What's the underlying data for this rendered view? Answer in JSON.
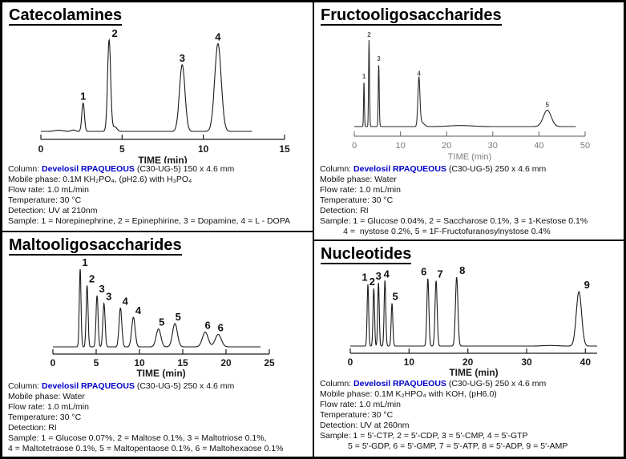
{
  "colors": {
    "background": "#ffffff",
    "border": "#000000",
    "brand_blue": "#0000cc",
    "trace_black": "#1a1a1a",
    "fructo_axis_gray": "#7a7a7a"
  },
  "panels": {
    "catecolamines": {
      "title": "Catecolamines",
      "column_prefix": "Column: ",
      "column_brand": "Develosil RPAQUEOUS",
      "column_suffix": " (C30-UG-5) 150 x 4.6 mm",
      "mobile_phase": "Mobile phase: 0.1M KH₂PO₄, (pH2.6) with H₃PO₄",
      "flow_rate": "Flow rate: 1.0 mL/min",
      "temperature": "Temperature: 30 °C",
      "detection": "Detection: UV at 210nm",
      "sample_line1": "Sample: 1 = Norepinephrine, 2 = Epinephirine, 3 = Dopamine, 4 = L - DOPA"
    },
    "fructooligosaccharides": {
      "title": "Fructooligosaccharides",
      "column_prefix": "Column: ",
      "column_brand": "Develosil RPAQUEOUS",
      "column_suffix": " (C30-UG-5) 250 x 4.6 mm",
      "mobile_phase": "Mobile phase: Water",
      "flow_rate": "Flow rate: 1.0 mL/min",
      "temperature": "Temperature: 30 °C",
      "detection": "Detection: RI",
      "sample_line1": "Sample: 1 = Glucose 0.04%, 2 = Saccharose 0.1%, 3 = 1-Kestose 0.1%",
      "sample_line2": "          4 =  nystose 0.2%, 5 = 1F-Fructofuranosylnystose 0.4%"
    },
    "maltooligosaccharides": {
      "title": "Maltooligosaccharides",
      "column_prefix": "Column: ",
      "column_brand": "Develosil RPAQUEOUS",
      "column_suffix": " (C30-UG-5) 250 x 4.6 mm",
      "mobile_phase": "Mobile phase: Water",
      "flow_rate": "Flow rate: 1.0 mL/min",
      "temperature": "Temperature: 30 °C",
      "detection": "Detection: RI",
      "sample_line1": "Sample: 1 = Glucose 0.07%, 2 = Maltose 0.1%, 3 = Maltotriose 0.1%,",
      "sample_line2": "4 = Maltotetraose 0.1%, 5 = Maltopentaose 0.1%, 6 = Maltohexaose 0.1%"
    },
    "nucleotides": {
      "title": "Nucleotides",
      "column_prefix": "Column: ",
      "column_brand": "Develosil RPAQUEOUS",
      "column_suffix": " (C30-UG-5) 250 x 4.6 mm",
      "mobile_phase": "Mobile phase: 0.1M K₂HPO₄ with KOH, (pH6.0)",
      "flow_rate": "Flow rate: 1.0 mL/min",
      "temperature": "Temperature: 30 °C",
      "detection": "Detection: UV at 260nm",
      "sample_line1": "Sample: 1 = 5'-CTP, 2 = 5'-CDP, 3 = 5'-CMP, 4 = 5'-GTP",
      "sample_line2": "            5 = 5'-GDP, 6 = 5'-GMP, 7 = 5'-ATP, 8 = 5'-ADP, 9 = 5'-AMP"
    }
  },
  "chart_data": [
    {
      "type": "line",
      "title": "Catecolamines",
      "xlabel": "TIME (min)",
      "xlim": [
        0,
        15
      ],
      "xticks": [
        0,
        5,
        10,
        15
      ],
      "trace_end": 13,
      "line_color": "#1a1a1a",
      "axis_color": "#1a1a1a",
      "label_color": "#111111",
      "peaks": [
        {
          "label": "1",
          "t": 2.6,
          "h": 0.31,
          "w": 0.08
        },
        {
          "label": "2",
          "t": 4.2,
          "h": 1.0,
          "w": 0.095,
          "dx": 7
        },
        {
          "label": "3",
          "t": 8.7,
          "h": 0.73,
          "w": 0.17
        },
        {
          "label": "4",
          "t": 10.9,
          "h": 0.96,
          "w": 0.2
        }
      ],
      "minor_peaks": [
        {
          "t": 1.1,
          "h": 0.012,
          "w": 0.25
        },
        {
          "t": 2.0,
          "h": 0.015,
          "w": 0.12
        },
        {
          "t": 4.55,
          "h": 0.05,
          "w": 0.13
        }
      ]
    },
    {
      "type": "line",
      "title": "Fructooligosaccharides",
      "xlabel": "TIME (min)",
      "xlim": [
        0,
        50
      ],
      "xticks": [
        0,
        10,
        20,
        30,
        40,
        50
      ],
      "trace_end": 48,
      "line_color": "#2a2a2a",
      "axis_color": "#7a7a7a",
      "label_color": "#555555",
      "peaks": [
        {
          "label": "1",
          "t": 2.1,
          "h": 0.52,
          "w": 0.09
        },
        {
          "label": "2",
          "t": 3.2,
          "h": 1.0,
          "w": 0.1
        },
        {
          "label": "3",
          "t": 5.3,
          "h": 0.72,
          "w": 0.11
        },
        {
          "label": "4",
          "t": 14.0,
          "h": 0.55,
          "w": 0.22
        },
        {
          "label": "5",
          "t": 41.8,
          "h": 0.19,
          "w": 0.85
        }
      ],
      "minor_peaks": [
        {
          "t": 14.6,
          "h": 0.05,
          "w": 0.5
        },
        {
          "t": 23.0,
          "h": 0.012,
          "w": 2.5
        }
      ]
    },
    {
      "type": "line",
      "title": "Maltooligosaccharides",
      "xlabel": "TIME (min)",
      "xlim": [
        0,
        25
      ],
      "xticks": [
        0,
        5,
        10,
        15,
        20,
        25
      ],
      "trace_end": 24,
      "line_color": "#1a1a1a",
      "axis_color": "#1a1a1a",
      "label_color": "#111111",
      "peaks": [
        {
          "label": "1",
          "t": 3.15,
          "h": 1.0,
          "w": 0.1,
          "dx": 6
        },
        {
          "label": "2",
          "t": 3.95,
          "h": 0.79,
          "w": 0.11,
          "dx": 6
        },
        {
          "label": "3",
          "t": 5.1,
          "h": 0.66,
          "w": 0.12,
          "dx": 6
        },
        {
          "label": "3",
          "t": 5.9,
          "h": 0.56,
          "w": 0.13,
          "dx": 6
        },
        {
          "label": "4",
          "t": 7.8,
          "h": 0.5,
          "w": 0.16,
          "dx": 6
        },
        {
          "label": "4",
          "t": 9.3,
          "h": 0.38,
          "w": 0.2,
          "dx": 6
        },
        {
          "label": "5",
          "t": 12.2,
          "h": 0.23,
          "w": 0.27,
          "dx": 4
        },
        {
          "label": "5",
          "t": 14.1,
          "h": 0.3,
          "w": 0.28,
          "dx": 4
        },
        {
          "label": "6",
          "t": 17.6,
          "h": 0.19,
          "w": 0.33,
          "dx": 3
        },
        {
          "label": "6",
          "t": 19.1,
          "h": 0.16,
          "w": 0.35,
          "dx": 3
        }
      ],
      "minor_peaks": []
    },
    {
      "type": "line",
      "title": "Nucleotides",
      "xlabel": "TIME (min)",
      "xlim": [
        0,
        42
      ],
      "xticks": [
        0,
        10,
        20,
        30,
        40
      ],
      "trace_end": 42,
      "line_color": "#1a1a1a",
      "axis_color": "#1a1a1a",
      "label_color": "#111111",
      "peaks": [
        {
          "label": "1",
          "t": 3.0,
          "h": 0.9,
          "w": 0.13,
          "dx": -4
        },
        {
          "label": "2",
          "t": 4.0,
          "h": 0.84,
          "w": 0.13,
          "dx": -2
        },
        {
          "label": "3",
          "t": 4.8,
          "h": 0.92,
          "w": 0.13
        },
        {
          "label": "4",
          "t": 5.9,
          "h": 0.95,
          "w": 0.14,
          "dx": 2
        },
        {
          "label": "5",
          "t": 7.1,
          "h": 0.62,
          "w": 0.14,
          "dx": 4
        },
        {
          "label": "6",
          "t": 13.2,
          "h": 0.98,
          "w": 0.17,
          "dx": -5
        },
        {
          "label": "7",
          "t": 14.6,
          "h": 0.95,
          "w": 0.18,
          "dx": 5
        },
        {
          "label": "8",
          "t": 18.1,
          "h": 1.0,
          "w": 0.21,
          "dx": 7
        },
        {
          "label": "9",
          "t": 38.9,
          "h": 0.79,
          "w": 0.45,
          "dx": 10
        }
      ],
      "minor_peaks": [
        {
          "t": 34.0,
          "h": 0.008,
          "w": 1.2
        }
      ]
    }
  ]
}
